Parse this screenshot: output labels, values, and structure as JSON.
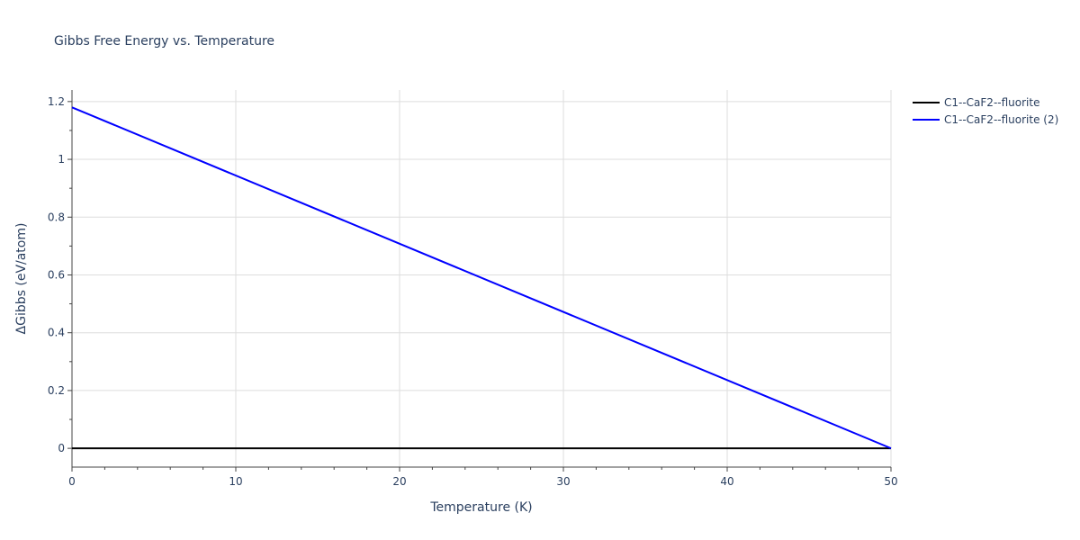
{
  "chart_data": {
    "type": "line",
    "title": "Gibbs Free Energy vs. Temperature",
    "xlabel": "Temperature (K)",
    "ylabel": "ΔGibbs (eV/atom)",
    "xlim": [
      0,
      50
    ],
    "ylim": [
      -0.065,
      1.24
    ],
    "x_ticks": [
      0,
      10,
      20,
      30,
      40,
      50
    ],
    "y_ticks": [
      0,
      0.2,
      0.4,
      0.6,
      0.8,
      1,
      1.2
    ],
    "x_tick_labels": [
      "0",
      "10",
      "20",
      "30",
      "40",
      "50"
    ],
    "y_tick_labels": [
      "0",
      "0.2",
      "0.4",
      "0.6",
      "0.8",
      "1",
      "1.2"
    ],
    "grid": true,
    "legend_position": "top-right outside",
    "series": [
      {
        "name": "C1--CaF2--fluorite",
        "color": "#000000",
        "x": [
          0,
          50
        ],
        "y": [
          0,
          0
        ]
      },
      {
        "name": "C1--CaF2--fluorite (2)",
        "color": "#0000ff",
        "x": [
          0,
          50
        ],
        "y": [
          1.18,
          0
        ]
      }
    ]
  }
}
